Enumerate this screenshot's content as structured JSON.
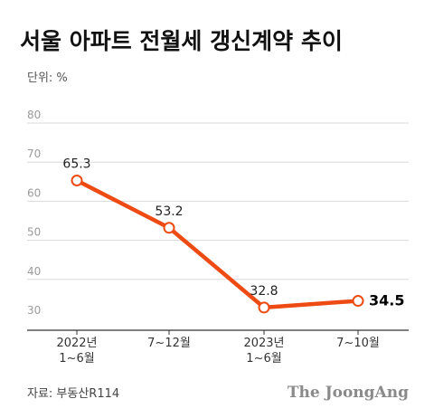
{
  "chart_data": {
    "type": "line",
    "title": "서울 아파트 전월세 갱신계약 추이",
    "unit_label": "단위: %",
    "categories": [
      [
        "2022년",
        "1~6월"
      ],
      [
        "7~12월"
      ],
      [
        "2023년",
        "1~6월"
      ],
      [
        "7~10월"
      ]
    ],
    "series": [
      {
        "values": [
          65.3,
          53.2,
          32.8,
          34.5
        ]
      }
    ],
    "data_labels": [
      "65.3",
      "53.2",
      "32.8",
      "34.5"
    ],
    "highlight_index": 3,
    "yticks": [
      30,
      40,
      50,
      60,
      70,
      80
    ],
    "ylim": [
      30,
      80
    ],
    "grid": true,
    "colors": {
      "line": "#ee4b14",
      "marker_fill": "#ffffff",
      "grid": "#d9d9d9",
      "axis": "#333333"
    }
  },
  "footer": {
    "source": "자료: 부동산R114",
    "brand": "The JoongAng"
  }
}
